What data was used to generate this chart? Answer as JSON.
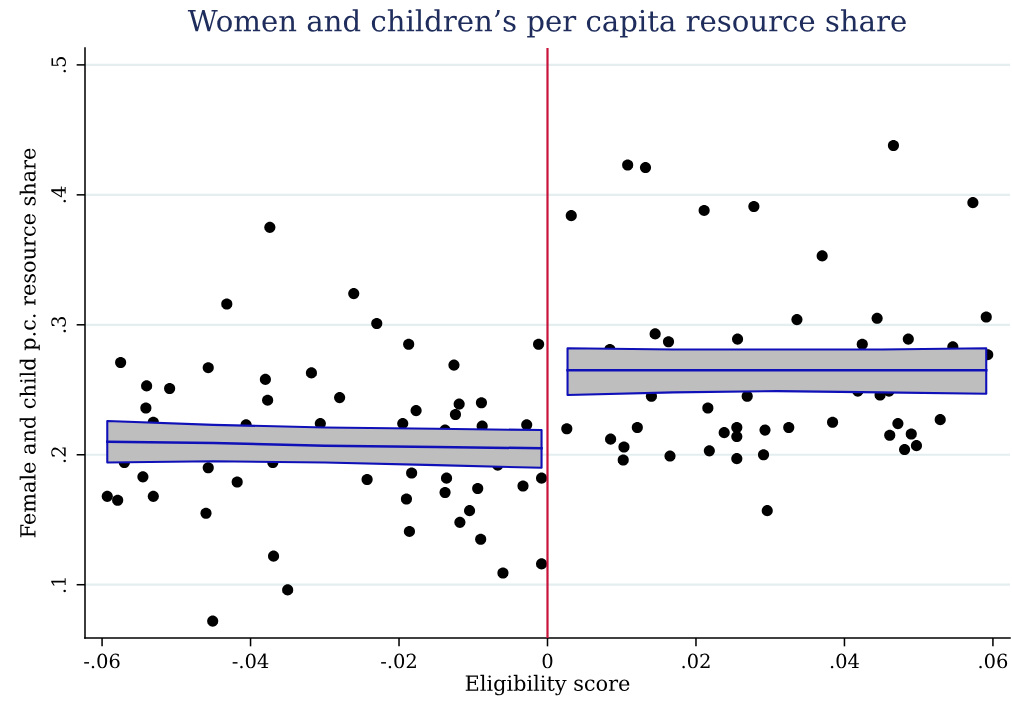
{
  "chart_data": {
    "type": "scatter",
    "title": "Women and children’s per capita resource share",
    "xlabel": "Eligibility score",
    "ylabel": "Female and child p.c. resource share",
    "xlim": [
      -0.0623,
      0.0623
    ],
    "ylim": [
      0.059,
      0.513
    ],
    "xticks": [
      {
        "value": -0.06,
        "label": "-.06"
      },
      {
        "value": -0.04,
        "label": "-.04"
      },
      {
        "value": -0.02,
        "label": "-.02"
      },
      0,
      {
        "value": 0.02,
        "label": ".02"
      },
      {
        "value": 0.04,
        "label": ".04"
      },
      {
        "value": 0.06,
        "label": ".06"
      }
    ],
    "yticks": [
      {
        "value": 0.1,
        "label": ".1"
      },
      {
        "value": 0.2,
        "label": ".2"
      },
      {
        "value": 0.3,
        "label": ".3"
      },
      {
        "value": 0.4,
        "label": ".4"
      },
      {
        "value": 0.5,
        "label": ".5"
      }
    ],
    "grid": "y",
    "ref_lines": [
      {
        "axis": "x",
        "value": 0,
        "color": "#c8143c"
      }
    ],
    "series": [
      {
        "color": "#000000",
        "marker": "circle",
        "x": [
          -0.0593,
          -0.0579,
          -0.0575,
          -0.057,
          -0.054,
          -0.0541,
          -0.0545,
          -0.0531,
          -0.0531,
          -0.0509,
          -0.046,
          -0.0457,
          -0.0457,
          -0.0451,
          -0.0432,
          -0.0418,
          -0.0406,
          -0.038,
          -0.0377,
          -0.0374,
          -0.037,
          -0.0369,
          -0.035,
          -0.0318,
          -0.0306,
          -0.028,
          -0.0261,
          -0.0243,
          -0.023,
          -0.0195,
          -0.019,
          -0.0187,
          -0.0186,
          -0.0183,
          -0.0177,
          -0.0138,
          -0.0138,
          -0.0136,
          -0.0126,
          -0.0124,
          -0.0119,
          -0.0118,
          -0.0105,
          -0.0067,
          -0.0094,
          -0.009,
          -0.0089,
          -0.0088,
          -0.006,
          -0.0033,
          -0.0028,
          -0.0012,
          -0.0008,
          -0.0008,
          0.0108,
          0.0132,
          0.0032,
          0.0211,
          0.0278,
          0.0145,
          0.0163,
          0.0256,
          0.0084,
          0.014,
          0.0269,
          0.0216,
          0.0026,
          0.0121,
          0.0085,
          0.0103,
          0.0102,
          0.0165,
          0.0238,
          0.0255,
          0.0255,
          0.0293,
          0.0218,
          0.0255,
          0.0291,
          0.0296,
          0.0466,
          0.0573,
          0.037,
          0.0336,
          0.0444,
          0.0591,
          0.0424,
          0.0486,
          0.0546,
          0.0593,
          0.0418,
          0.0448,
          0.046,
          0.0325,
          0.0384,
          0.0472,
          0.0461,
          0.049,
          0.0529,
          0.0481,
          0.0497
        ],
        "values": [
          0.168,
          0.165,
          0.271,
          0.194,
          0.253,
          0.236,
          0.183,
          0.225,
          0.168,
          0.251,
          0.155,
          0.267,
          0.19,
          0.072,
          0.316,
          0.179,
          0.223,
          0.258,
          0.242,
          0.375,
          0.194,
          0.122,
          0.096,
          0.263,
          0.224,
          0.244,
          0.324,
          0.181,
          0.301,
          0.224,
          0.166,
          0.285,
          0.141,
          0.186,
          0.234,
          0.219,
          0.171,
          0.182,
          0.269,
          0.231,
          0.239,
          0.148,
          0.157,
          0.192,
          0.174,
          0.135,
          0.24,
          0.222,
          0.109,
          0.176,
          0.223,
          0.285,
          0.182,
          0.116,
          0.423,
          0.421,
          0.384,
          0.388,
          0.391,
          0.293,
          0.287,
          0.289,
          0.281,
          0.245,
          0.245,
          0.236,
          0.22,
          0.221,
          0.212,
          0.206,
          0.196,
          0.199,
          0.217,
          0.221,
          0.214,
          0.219,
          0.203,
          0.197,
          0.2,
          0.157,
          0.438,
          0.394,
          0.353,
          0.304,
          0.305,
          0.306,
          0.285,
          0.289,
          0.283,
          0.277,
          0.249,
          0.246,
          0.249,
          0.221,
          0.225,
          0.224,
          0.215,
          0.216,
          0.227,
          0.204,
          0.207
        ]
      },
      {
        "type": "line",
        "color": "#1010b8",
        "x": [
          -0.0593,
          -0.045,
          -0.03,
          -0.015,
          -0.0008
        ],
        "values": [
          0.21,
          0.209,
          0.207,
          0.206,
          0.205
        ],
        "lower": [
          0.194,
          0.195,
          0.194,
          0.192,
          0.19
        ],
        "upper": [
          0.226,
          0.223,
          0.221,
          0.22,
          0.219
        ]
      },
      {
        "type": "line",
        "color": "#1010b8",
        "x": [
          0.0027,
          0.017,
          0.031,
          0.045,
          0.0591
        ],
        "values": [
          0.265,
          0.265,
          0.265,
          0.265,
          0.265
        ],
        "lower": [
          0.246,
          0.248,
          0.249,
          0.248,
          0.247
        ],
        "upper": [
          0.282,
          0.281,
          0.281,
          0.281,
          0.282
        ]
      }
    ]
  }
}
